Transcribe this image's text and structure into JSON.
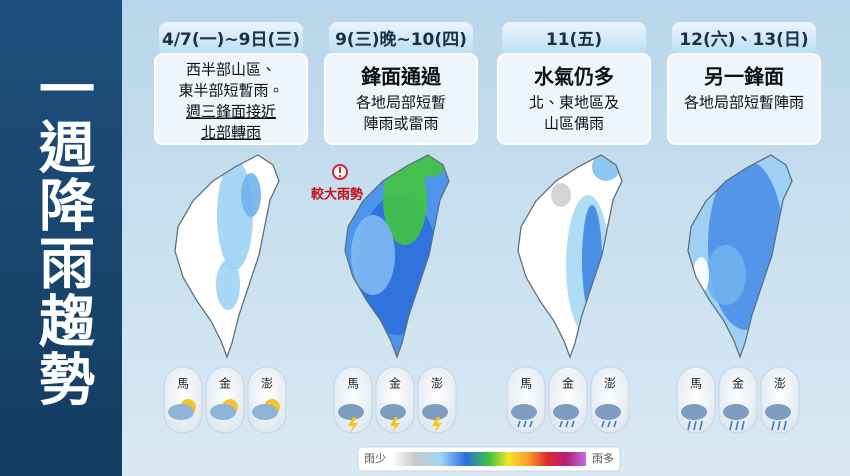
{
  "sidebar": {
    "title": "一週降雨趨勢"
  },
  "panels": [
    {
      "date": "4/7(一)~9日(三)",
      "lines": [
        "西半部山區、",
        "東半部短暫雨。",
        "週三鋒面接近",
        "北部轉雨"
      ],
      "islands": [
        "馬",
        "金",
        "澎"
      ]
    },
    {
      "date": "9(三)晚~10(四)",
      "headline": "鋒面通過",
      "lines": [
        "各地局部短暫",
        "陣雨或雷雨"
      ],
      "islands": [
        "馬",
        "金",
        "澎"
      ]
    },
    {
      "date": "11(五)",
      "headline": "水氣仍多",
      "lines": [
        "北、東地區及",
        "山區偶雨"
      ],
      "islands": [
        "馬",
        "金",
        "澎"
      ]
    },
    {
      "date": "12(六)、13(日)",
      "headline": "另一鋒面",
      "lines": [
        "各地局部短暫陣雨"
      ],
      "islands": [
        "馬",
        "金",
        "澎"
      ]
    }
  ],
  "annotation": "較大雨勢",
  "legend": {
    "low": "雨少",
    "high": "雨多"
  }
}
